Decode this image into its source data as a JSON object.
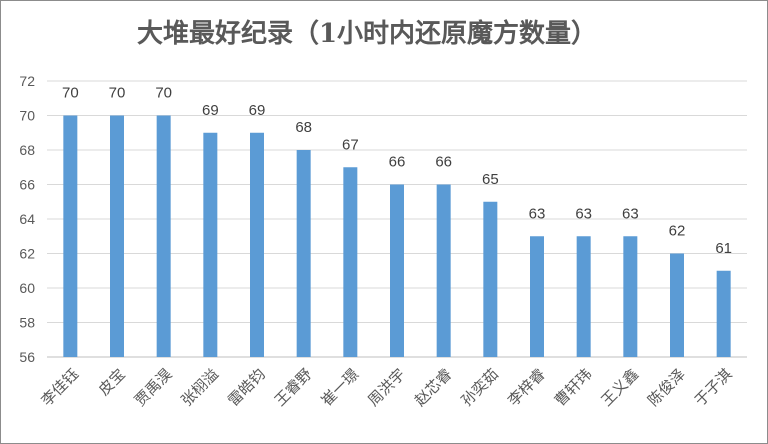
{
  "chart_data": {
    "type": "bar",
    "title": "大堆最好纪录（1小时内还原魔方数量）",
    "categories": [
      "李佳钰",
      "皮宝",
      "贾禹淏",
      "张栩溢",
      "雷皓钧",
      "王睿野",
      "崔一璟",
      "周洪宇",
      "赵芯睿",
      "孙奕茹",
      "李梓睿",
      "曹轩玮",
      "王义鑫",
      "陈俊泽",
      "于子淇"
    ],
    "values": [
      70,
      70,
      70,
      69,
      69,
      68,
      67,
      66,
      66,
      65,
      63,
      63,
      63,
      62,
      61
    ],
    "ylim": [
      56,
      72
    ],
    "yticks": [
      56,
      58,
      60,
      62,
      64,
      66,
      68,
      70,
      72
    ],
    "grid": true,
    "legend": "none",
    "colors": {
      "bar": "#5b9bd5",
      "grid": "#d9d9d9",
      "axis": "#bfbfbf",
      "text": "#595959"
    }
  }
}
